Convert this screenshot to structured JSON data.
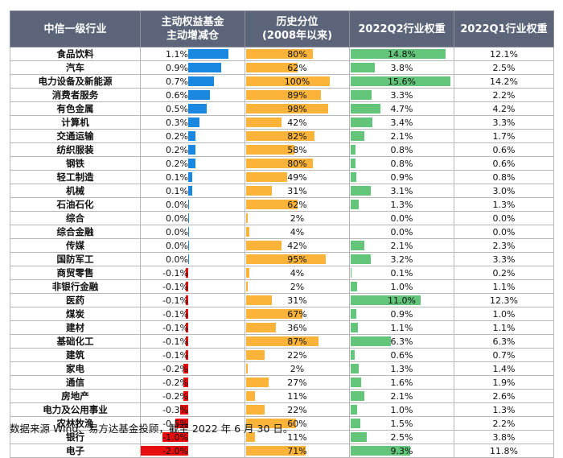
{
  "chart_data": {
    "type": "table",
    "columns": [
      "中信一级行业",
      "主动权益基金\n主动增减仓",
      "历史分位\n(2008年以来)",
      "2022Q2行业权重",
      "2022Q1行业权重"
    ],
    "colors": {
      "header_bg": "#5b6478",
      "increase_bar": "#1a87e0",
      "decrease_bar": "#e60e0e",
      "percentile_bar": "#fbb33a",
      "q2_weight_bar": "#62c57a"
    },
    "rows": [
      {
        "industry": "食品饮料",
        "change": 1.1,
        "change_label": "1.1%",
        "percentile": 80,
        "percentile_label": "80%",
        "q2": 14.8,
        "q2_label": "14.8%",
        "q1_label": "12.1%"
      },
      {
        "industry": "汽车",
        "change": 0.9,
        "change_label": "0.9%",
        "percentile": 62,
        "percentile_label": "62%",
        "q2": 3.8,
        "q2_label": "3.8%",
        "q1_label": "2.5%"
      },
      {
        "industry": "电力设备及新能源",
        "change": 0.7,
        "change_label": "0.7%",
        "percentile": 100,
        "percentile_label": "100%",
        "q2": 15.6,
        "q2_label": "15.6%",
        "q1_label": "14.2%"
      },
      {
        "industry": "消费者服务",
        "change": 0.6,
        "change_label": "0.6%",
        "percentile": 89,
        "percentile_label": "89%",
        "q2": 3.3,
        "q2_label": "3.3%",
        "q1_label": "2.2%"
      },
      {
        "industry": "有色金属",
        "change": 0.5,
        "change_label": "0.5%",
        "percentile": 98,
        "percentile_label": "98%",
        "q2": 4.7,
        "q2_label": "4.7%",
        "q1_label": "4.2%"
      },
      {
        "industry": "计算机",
        "change": 0.3,
        "change_label": "0.3%",
        "percentile": 42,
        "percentile_label": "42%",
        "q2": 3.4,
        "q2_label": "3.4%",
        "q1_label": "3.3%"
      },
      {
        "industry": "交通运输",
        "change": 0.2,
        "change_label": "0.2%",
        "percentile": 82,
        "percentile_label": "82%",
        "q2": 2.1,
        "q2_label": "2.1%",
        "q1_label": "1.7%"
      },
      {
        "industry": "纺织服装",
        "change": 0.2,
        "change_label": "0.2%",
        "percentile": 58,
        "percentile_label": "58%",
        "q2": 0.8,
        "q2_label": "0.8%",
        "q1_label": "0.6%"
      },
      {
        "industry": "钢铁",
        "change": 0.2,
        "change_label": "0.2%",
        "percentile": 80,
        "percentile_label": "80%",
        "q2": 0.8,
        "q2_label": "0.8%",
        "q1_label": "0.6%"
      },
      {
        "industry": "轻工制造",
        "change": 0.1,
        "change_label": "0.1%",
        "percentile": 49,
        "percentile_label": "49%",
        "q2": 0.9,
        "q2_label": "0.9%",
        "q1_label": "0.8%"
      },
      {
        "industry": "机械",
        "change": 0.1,
        "change_label": "0.1%",
        "percentile": 31,
        "percentile_label": "31%",
        "q2": 3.1,
        "q2_label": "3.1%",
        "q1_label": "3.0%"
      },
      {
        "industry": "石油石化",
        "change": 0.0,
        "change_label": "0.0%",
        "percentile": 62,
        "percentile_label": "62%",
        "q2": 1.3,
        "q2_label": "1.3%",
        "q1_label": "1.3%"
      },
      {
        "industry": "综合",
        "change": 0.0,
        "change_label": "0.0%",
        "percentile": 2,
        "percentile_label": "2%",
        "q2": 0.0,
        "q2_label": "0.0%",
        "q1_label": "0.0%"
      },
      {
        "industry": "综合金融",
        "change": 0.0,
        "change_label": "0.0%",
        "percentile": 4,
        "percentile_label": "4%",
        "q2": 0.0,
        "q2_label": "0.0%",
        "q1_label": "0.0%"
      },
      {
        "industry": "传媒",
        "change": 0.0,
        "change_label": "0.0%",
        "percentile": 42,
        "percentile_label": "42%",
        "q2": 2.1,
        "q2_label": "2.1%",
        "q1_label": "2.3%"
      },
      {
        "industry": "国防军工",
        "change": 0.0,
        "change_label": "0.0%",
        "percentile": 95,
        "percentile_label": "95%",
        "q2": 3.2,
        "q2_label": "3.2%",
        "q1_label": "3.3%"
      },
      {
        "industry": "商贸零售",
        "change": -0.1,
        "change_label": "-0.1%",
        "percentile": 4,
        "percentile_label": "4%",
        "q2": 0.1,
        "q2_label": "0.1%",
        "q1_label": "0.2%"
      },
      {
        "industry": "非银行金融",
        "change": -0.1,
        "change_label": "-0.1%",
        "percentile": 2,
        "percentile_label": "2%",
        "q2": 1.0,
        "q2_label": "1.0%",
        "q1_label": "1.1%"
      },
      {
        "industry": "医药",
        "change": -0.1,
        "change_label": "-0.1%",
        "percentile": 31,
        "percentile_label": "31%",
        "q2": 11.0,
        "q2_label": "11.0%",
        "q1_label": "12.3%"
      },
      {
        "industry": "煤炭",
        "change": -0.1,
        "change_label": "-0.1%",
        "percentile": 67,
        "percentile_label": "67%",
        "q2": 0.9,
        "q2_label": "0.9%",
        "q1_label": "1.0%"
      },
      {
        "industry": "建材",
        "change": -0.1,
        "change_label": "-0.1%",
        "percentile": 36,
        "percentile_label": "36%",
        "q2": 1.1,
        "q2_label": "1.1%",
        "q1_label": "1.1%"
      },
      {
        "industry": "基础化工",
        "change": -0.1,
        "change_label": "-0.1%",
        "percentile": 87,
        "percentile_label": "87%",
        "q2": 6.3,
        "q2_label": "6.3%",
        "q1_label": "6.3%"
      },
      {
        "industry": "建筑",
        "change": -0.1,
        "change_label": "-0.1%",
        "percentile": 22,
        "percentile_label": "22%",
        "q2": 0.6,
        "q2_label": "0.6%",
        "q1_label": "0.7%"
      },
      {
        "industry": "家电",
        "change": -0.2,
        "change_label": "-0.2%",
        "percentile": 2,
        "percentile_label": "2%",
        "q2": 1.3,
        "q2_label": "1.3%",
        "q1_label": "1.4%"
      },
      {
        "industry": "通信",
        "change": -0.2,
        "change_label": "-0.2%",
        "percentile": 27,
        "percentile_label": "27%",
        "q2": 1.6,
        "q2_label": "1.6%",
        "q1_label": "1.9%"
      },
      {
        "industry": "房地产",
        "change": -0.2,
        "change_label": "-0.2%",
        "percentile": 11,
        "percentile_label": "11%",
        "q2": 2.1,
        "q2_label": "2.1%",
        "q1_label": "2.6%"
      },
      {
        "industry": "电力及公用事业",
        "change": -0.3,
        "change_label": "-0.3%",
        "percentile": 22,
        "percentile_label": "22%",
        "q2": 1.0,
        "q2_label": "1.0%",
        "q1_label": "1.3%"
      },
      {
        "industry": "农林牧渔",
        "change": -0.5,
        "change_label": "-0.5%",
        "percentile": 60,
        "percentile_label": "60%",
        "q2": 1.5,
        "q2_label": "1.5%",
        "q1_label": "2.2%"
      },
      {
        "industry": "银行",
        "change": -1.0,
        "change_label": "-1.0%",
        "percentile": 11,
        "percentile_label": "11%",
        "q2": 2.5,
        "q2_label": "2.5%",
        "q1_label": "3.8%"
      },
      {
        "industry": "电子",
        "change": -2.0,
        "change_label": "-2.0%",
        "percentile": 71,
        "percentile_label": "71%",
        "q2": 9.3,
        "q2_label": "9.3%",
        "q1_label": "11.8%"
      }
    ]
  },
  "footnote": "数据来源 Wind、易方达基金投顾，截至 2022 年 6 月 30 日。"
}
